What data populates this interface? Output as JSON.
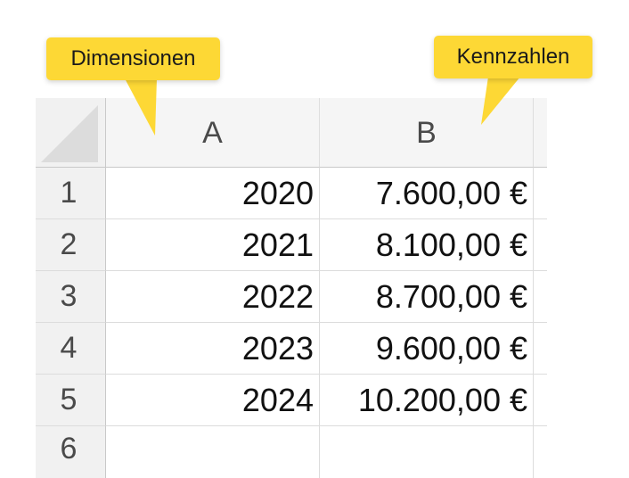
{
  "column_headers": {
    "a": "A",
    "b": "B"
  },
  "rows": [
    {
      "number": "1",
      "a": "2020",
      "b": "7.600,00 €"
    },
    {
      "number": "2",
      "a": "2021",
      "b": "8.100,00 €"
    },
    {
      "number": "3",
      "a": "2022",
      "b": "8.700,00 €"
    },
    {
      "number": "4",
      "a": "2023",
      "b": "9.600,00 €"
    },
    {
      "number": "5",
      "a": "2024",
      "b": "10.200,00 €"
    },
    {
      "number": "6",
      "a": "",
      "b": ""
    }
  ],
  "callouts": {
    "dimensions": "Dimensionen",
    "kpis": "Kennzahlen"
  },
  "colors": {
    "callout": "#fdd835",
    "header_bg": "#f1f1f1",
    "gridline": "#dcdcdc"
  }
}
